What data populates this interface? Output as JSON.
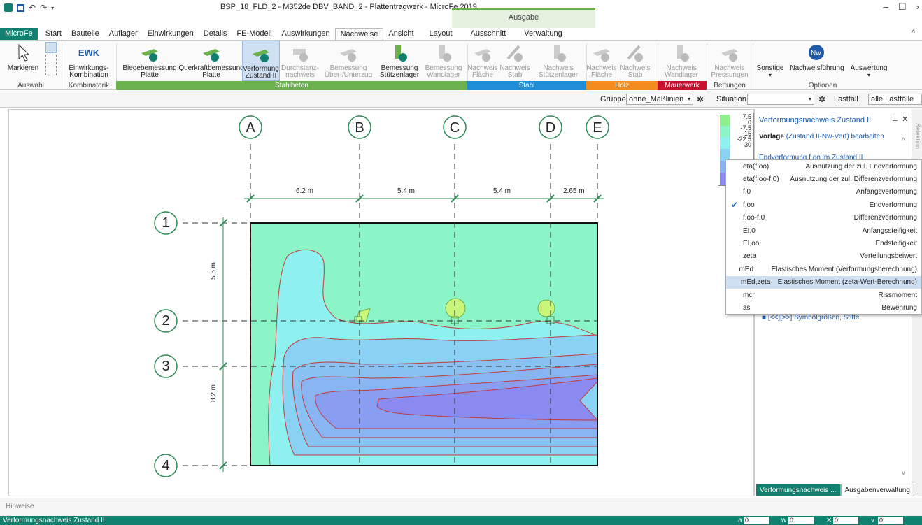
{
  "app": {
    "title": "BSP_18_FLD_2 - M352de DBV_BAND_2 - Plattentragwerk - MicroFe 2019",
    "context_tab": "Ausgabe"
  },
  "tabs": [
    "MicroFe",
    "Start",
    "Bauteile",
    "Auflager",
    "Einwirkungen",
    "Details",
    "FE-Modell",
    "Auswirkungen",
    "Nachweise",
    "Ansicht",
    "Layout",
    "Ausschnitt",
    "Verwaltung"
  ],
  "ribbon": {
    "markieren": "Markieren",
    "ewk_icon": "EWK",
    "ewk_l1": "Einwirkungs-",
    "ewk_l2": "Kombination",
    "b1_l1": "Biegebemessung",
    "b1_l2": "Platte",
    "b2_l1": "Querkraftbemessung",
    "b2_l2": "Platte",
    "b3_l1": "Verformung",
    "b3_l2": "Zustand II",
    "b4_l1": "Durchstanz-",
    "b4_l2": "nachweis",
    "b5_l1": "Bemessung",
    "b5_l2": "Über-/Unterzug",
    "b6_l1": "Bemessung",
    "b6_l2": "Stützenlager",
    "b7_l1": "Bemessung",
    "b7_l2": "Wandlager",
    "s1_l1": "Nachweis",
    "s1_l2": "Fläche",
    "s2_l1": "Nachweis",
    "s2_l2": "Stab",
    "s3_l1": "Nachweis",
    "s3_l2": "Stützenlager",
    "h1_l1": "Nachweis",
    "h1_l2": "Fläche",
    "h2_l1": "Nachweis",
    "h2_l2": "Stab",
    "m1_l1": "Nachweis",
    "m1_l2": "Wandlager",
    "p1_l1": "Nachweis",
    "p1_l2": "Pressungen",
    "sonstige": "Sonstige",
    "nachweisfuehrung": "Nachweisführung",
    "auswertung": "Auswertung",
    "groups": {
      "auswahl": "Auswahl",
      "kombinatorik": "Kombinatorik",
      "stahlbeton": "Stahlbeton",
      "stahl": "Stahl",
      "holz": "Holz",
      "mauerwerk": "Mauerwerk",
      "bettungen": "Bettungen",
      "optionen": "Optionen"
    }
  },
  "filter": {
    "gruppe_label": "Gruppe",
    "gruppe_value": "ohne_Maßlinien",
    "situation_label": "Situation",
    "lastfall_label": "Lastfall",
    "lastfall_value": "alle Lastfälle"
  },
  "axes": {
    "cols": [
      "A",
      "B",
      "C",
      "D",
      "E"
    ],
    "rows": [
      "1",
      "2",
      "3",
      "4"
    ],
    "dims_x": [
      "6.2 m",
      "5.4 m",
      "5.4 m",
      "2.65 m"
    ],
    "dims_y": [
      "5.5 m",
      "8.2 m"
    ]
  },
  "legend": {
    "values": [
      "7.5",
      "0",
      "-7.5",
      "-15",
      "-22.5",
      "-30"
    ],
    "colors": [
      "#8cf08c",
      "#8cf5c8",
      "#8ef0ef",
      "#8ad2f3",
      "#88b4f2",
      "#8a8af0"
    ]
  },
  "panel": {
    "title": "Verformungsnachweis Zustand II",
    "vorlage_bold": "Vorlage",
    "vorlage_link": "(Zustand II-Nw-Verf)",
    "vorlage_rest": "bearbeiten",
    "endverf": "Endverformung f,oo im Zustand II",
    "symbol_link": "[<<][>>] Symbolgrößen, Stifte",
    "side_tab": "Selektion"
  },
  "dropdown": [
    {
      "code": "eta(f,oo)",
      "desc": "Ausnutzung der zul. Endverformung",
      "checked": "",
      "hl": false
    },
    {
      "code": "eta(f,oo-f,0)",
      "desc": "Ausnutzung der zul. Differenzverformung",
      "checked": "",
      "hl": false
    },
    {
      "code": "f,0",
      "desc": "Anfangsverformung",
      "checked": "",
      "hl": false
    },
    {
      "code": "f,oo",
      "desc": "Endverformung",
      "checked": "✔",
      "hl": false
    },
    {
      "code": "f,oo-f,0",
      "desc": "Differenzverformung",
      "checked": "",
      "hl": false
    },
    {
      "code": "EI,0",
      "desc": "Anfangssteifigkeit",
      "checked": "",
      "hl": false
    },
    {
      "code": "EI,oo",
      "desc": "Endsteifigkeit",
      "checked": "",
      "hl": false
    },
    {
      "code": "zeta",
      "desc": "Verteilungsbeiwert",
      "checked": "",
      "hl": false
    },
    {
      "code": "mEd",
      "desc": "Elastisches Moment (Verformungsberechnung)",
      "checked": "",
      "hl": false
    },
    {
      "code": "mEd,zeta",
      "desc": "Elastisches Moment (zeta-Wert-Berechnung)",
      "checked": "",
      "hl": true
    },
    {
      "code": "mcr",
      "desc": "Rissmoment",
      "checked": "",
      "hl": false
    },
    {
      "code": "as",
      "desc": "Bewehrung",
      "checked": "",
      "hl": false
    }
  ],
  "bottom_tabs": [
    "Verformungsnachweis ...",
    "Ausgabenverwaltung"
  ],
  "hinweise": "Hinweise",
  "status": {
    "text": "Verformungsnachweis Zustand II",
    "a_label": "a",
    "a_val": "0",
    "w_label": "w",
    "w_val": "0",
    "x_label": "✕",
    "x_val": "0",
    "v_label": "√",
    "v_val": "0"
  }
}
